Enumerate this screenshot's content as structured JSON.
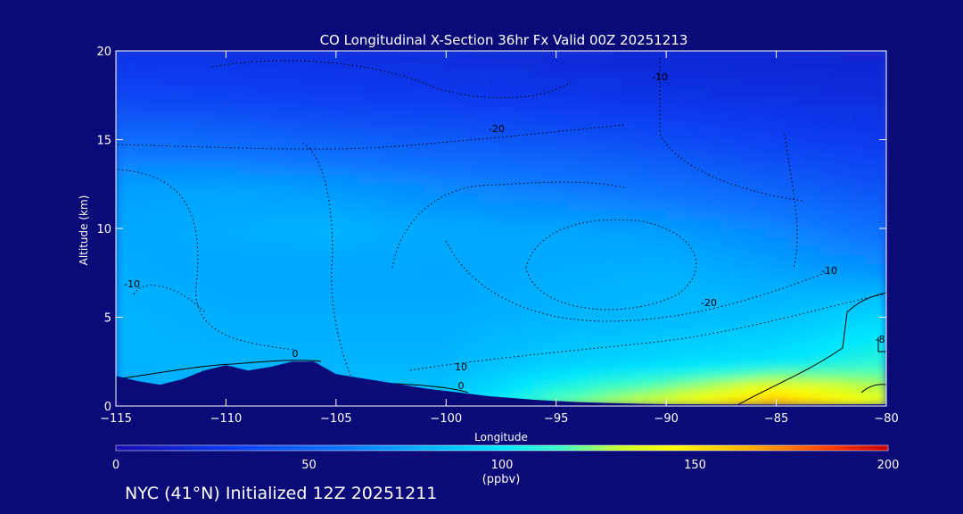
{
  "chart_data": {
    "type": "heatmap",
    "title": "CO Longitudinal X-Section 36hr  Fx Valid 00Z 20251213",
    "xlabel": "Longitude",
    "ylabel": "Altitude (km)",
    "xlim": [
      -115,
      -80
    ],
    "ylim": [
      0,
      20
    ],
    "x_ticks": [
      -115,
      -110,
      -105,
      -100,
      -95,
      -90,
      -85,
      -80
    ],
    "x_tick_labels": [
      "−115",
      "−110",
      "−105",
      "−100",
      "−95",
      "−90",
      "−85",
      "−80"
    ],
    "y_ticks": [
      0,
      5,
      10,
      15,
      20
    ],
    "y_tick_labels": [
      "0",
      "5",
      "10",
      "15",
      "20"
    ],
    "colorbar": {
      "min": 0,
      "max": 200,
      "ticks": [
        0,
        50,
        100,
        150,
        200
      ],
      "tick_labels": [
        "0",
        "50",
        "100",
        "150",
        "200"
      ],
      "units": "(ppbv)"
    },
    "co_field_ppbv": {
      "x": [
        -115,
        -110,
        -105,
        -100,
        -95,
        -90,
        -85,
        -80
      ],
      "y": [
        0,
        2.5,
        5,
        7.5,
        10,
        12.5,
        15,
        17.5,
        20
      ],
      "values": [
        [
          75,
          80,
          85,
          90,
          120,
          140,
          170,
          140
        ],
        [
          80,
          80,
          80,
          80,
          90,
          95,
          100,
          110
        ],
        [
          80,
          78,
          78,
          78,
          80,
          82,
          85,
          95
        ],
        [
          78,
          76,
          75,
          75,
          78,
          80,
          75,
          70
        ],
        [
          76,
          78,
          80,
          76,
          75,
          72,
          65,
          55
        ],
        [
          72,
          74,
          70,
          65,
          60,
          55,
          48,
          40
        ],
        [
          55,
          52,
          48,
          45,
          42,
          38,
          32,
          28
        ],
        [
          35,
          33,
          30,
          28,
          26,
          24,
          22,
          20
        ],
        [
          25,
          24,
          22,
          20,
          18,
          17,
          16,
          15
        ]
      ]
    },
    "terrain_km": {
      "x": [
        -115,
        -114,
        -113,
        -112,
        -111,
        -110,
        -109,
        -108,
        -107,
        -106,
        -105,
        -104,
        -103,
        -102,
        -101,
        -100,
        -99,
        -98,
        -97,
        -96,
        -95,
        -94,
        -93,
        -92,
        -91,
        -90,
        -85,
        -80
      ],
      "y": [
        1.7,
        1.4,
        1.2,
        1.5,
        2.0,
        2.3,
        2.0,
        2.2,
        2.5,
        2.5,
        1.8,
        1.6,
        1.4,
        1.2,
        1.0,
        0.85,
        0.7,
        0.55,
        0.45,
        0.35,
        0.28,
        0.22,
        0.18,
        0.15,
        0.12,
        0.1,
        0.08,
        0.1
      ]
    },
    "contour_labels": [
      "-10",
      "-20",
      "-10",
      "0",
      "10",
      "0",
      "-20",
      "-10",
      "-8"
    ]
  },
  "footer": {
    "text": "NYC (41°N) Initialized 12Z 20251211"
  }
}
